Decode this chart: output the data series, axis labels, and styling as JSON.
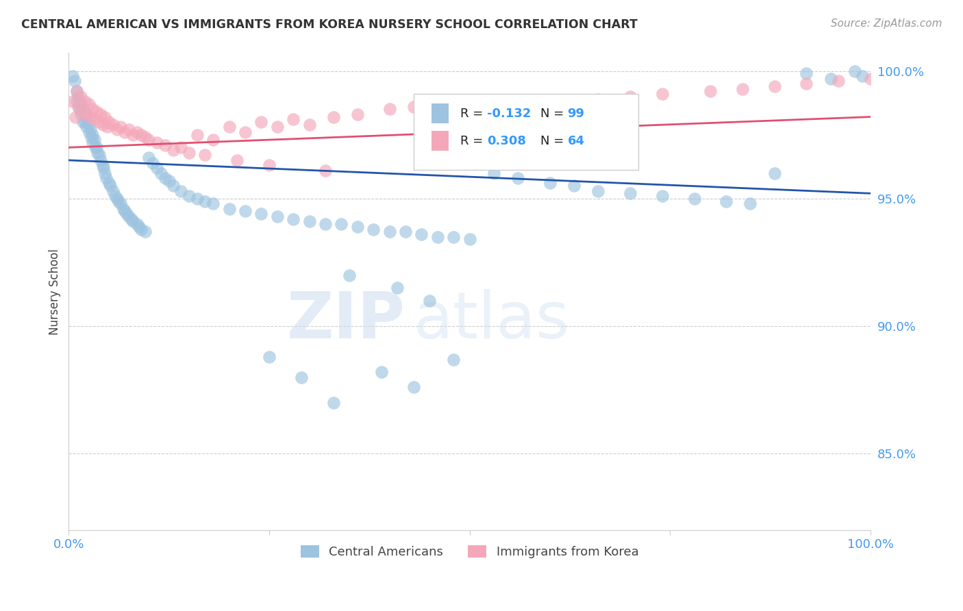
{
  "title": "CENTRAL AMERICAN VS IMMIGRANTS FROM KOREA NURSERY SCHOOL CORRELATION CHART",
  "source": "Source: ZipAtlas.com",
  "ylabel": "Nursery School",
  "xlim": [
    0.0,
    1.0
  ],
  "ylim": [
    0.82,
    1.007
  ],
  "yticks": [
    0.85,
    0.9,
    0.95,
    1.0
  ],
  "ytick_labels": [
    "85.0%",
    "90.0%",
    "95.0%",
    "100.0%"
  ],
  "xticks": [
    0.0,
    0.25,
    0.5,
    0.75,
    1.0
  ],
  "xtick_labels": [
    "0.0%",
    "",
    "",
    "",
    "100.0%"
  ],
  "blue_color": "#9dc3e0",
  "pink_color": "#f4a7b9",
  "blue_line_color": "#2255aa",
  "pink_line_color": "#e05070",
  "legend_R_blue": "-0.132",
  "legend_N_blue": "99",
  "legend_R_pink": "0.308",
  "legend_N_pink": "64",
  "watermark_zip": "ZIP",
  "watermark_atlas": "atlas",
  "background_color": "#ffffff",
  "blue_x": [
    0.005,
    0.007,
    0.01,
    0.01,
    0.012,
    0.013,
    0.015,
    0.015,
    0.016,
    0.018,
    0.02,
    0.02,
    0.022,
    0.022,
    0.025,
    0.025,
    0.027,
    0.028,
    0.03,
    0.03,
    0.032,
    0.033,
    0.035,
    0.036,
    0.038,
    0.04,
    0.042,
    0.043,
    0.045,
    0.047,
    0.05,
    0.052,
    0.055,
    0.058,
    0.06,
    0.062,
    0.065,
    0.068,
    0.07,
    0.072,
    0.075,
    0.078,
    0.08,
    0.085,
    0.088,
    0.09,
    0.095,
    0.1,
    0.105,
    0.11,
    0.115,
    0.12,
    0.125,
    0.13,
    0.14,
    0.15,
    0.16,
    0.17,
    0.18,
    0.2,
    0.22,
    0.24,
    0.26,
    0.28,
    0.3,
    0.32,
    0.34,
    0.36,
    0.38,
    0.4,
    0.42,
    0.44,
    0.46,
    0.48,
    0.5,
    0.53,
    0.56,
    0.6,
    0.63,
    0.66,
    0.7,
    0.74,
    0.78,
    0.82,
    0.85,
    0.88,
    0.92,
    0.95,
    0.98,
    0.99,
    0.35,
    0.41,
    0.45,
    0.33,
    0.29,
    0.25,
    0.48,
    0.39,
    0.43
  ],
  "blue_y": [
    0.998,
    0.996,
    0.992,
    0.988,
    0.99,
    0.985,
    0.987,
    0.983,
    0.985,
    0.98,
    0.984,
    0.98,
    0.982,
    0.978,
    0.979,
    0.976,
    0.977,
    0.974,
    0.975,
    0.972,
    0.973,
    0.97,
    0.97,
    0.968,
    0.967,
    0.965,
    0.963,
    0.962,
    0.96,
    0.958,
    0.956,
    0.955,
    0.953,
    0.951,
    0.95,
    0.949,
    0.948,
    0.946,
    0.945,
    0.944,
    0.943,
    0.942,
    0.941,
    0.94,
    0.939,
    0.938,
    0.937,
    0.966,
    0.964,
    0.962,
    0.96,
    0.958,
    0.957,
    0.955,
    0.953,
    0.951,
    0.95,
    0.949,
    0.948,
    0.946,
    0.945,
    0.944,
    0.943,
    0.942,
    0.941,
    0.94,
    0.94,
    0.939,
    0.938,
    0.937,
    0.937,
    0.936,
    0.935,
    0.935,
    0.934,
    0.96,
    0.958,
    0.956,
    0.955,
    0.953,
    0.952,
    0.951,
    0.95,
    0.949,
    0.948,
    0.96,
    0.999,
    0.997,
    1.0,
    0.998,
    0.92,
    0.915,
    0.91,
    0.87,
    0.88,
    0.888,
    0.887,
    0.882,
    0.876
  ],
  "pink_x": [
    0.005,
    0.008,
    0.01,
    0.012,
    0.015,
    0.017,
    0.02,
    0.022,
    0.025,
    0.027,
    0.03,
    0.032,
    0.035,
    0.038,
    0.04,
    0.042,
    0.045,
    0.048,
    0.05,
    0.055,
    0.06,
    0.065,
    0.07,
    0.075,
    0.08,
    0.085,
    0.09,
    0.095,
    0.1,
    0.11,
    0.12,
    0.14,
    0.16,
    0.18,
    0.2,
    0.22,
    0.24,
    0.26,
    0.28,
    0.3,
    0.33,
    0.36,
    0.4,
    0.43,
    0.46,
    0.5,
    0.54,
    0.58,
    0.62,
    0.66,
    0.7,
    0.74,
    0.8,
    0.84,
    0.88,
    0.92,
    0.96,
    1.0,
    0.13,
    0.15,
    0.17,
    0.21,
    0.25,
    0.32
  ],
  "pink_y": [
    0.988,
    0.982,
    0.992,
    0.986,
    0.99,
    0.984,
    0.988,
    0.983,
    0.987,
    0.982,
    0.985,
    0.981,
    0.984,
    0.98,
    0.983,
    0.979,
    0.982,
    0.978,
    0.98,
    0.979,
    0.977,
    0.978,
    0.976,
    0.977,
    0.975,
    0.976,
    0.975,
    0.974,
    0.973,
    0.972,
    0.971,
    0.97,
    0.975,
    0.973,
    0.978,
    0.976,
    0.98,
    0.978,
    0.981,
    0.979,
    0.982,
    0.983,
    0.985,
    0.986,
    0.984,
    0.987,
    0.986,
    0.988,
    0.987,
    0.989,
    0.99,
    0.991,
    0.992,
    0.993,
    0.994,
    0.995,
    0.996,
    0.997,
    0.969,
    0.968,
    0.967,
    0.965,
    0.963,
    0.961
  ]
}
